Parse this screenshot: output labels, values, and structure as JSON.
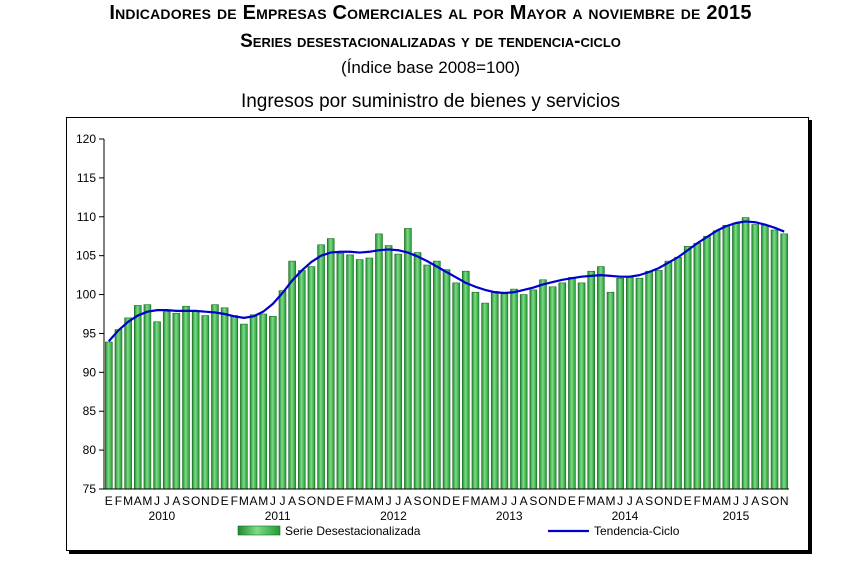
{
  "header": {
    "title_line1": "Indicadores de Empresas Comerciales al por Mayor a noviembre de 2015",
    "title_line2": "Series desestacionalizadas y de tendencia-ciclo",
    "subtitle": "(Índice base 2008=100)",
    "chart_title": "Ingresos por suministro de bienes y servicios"
  },
  "chart_data": {
    "type": "bar",
    "title": "Ingresos por suministro de bienes y servicios",
    "xlabel": "",
    "ylabel": "",
    "ylim": [
      75,
      120
    ],
    "yticks": [
      75,
      80,
      85,
      90,
      95,
      100,
      105,
      110,
      115,
      120
    ],
    "grid": false,
    "legend_position": "bottom",
    "month_labels": [
      "E",
      "F",
      "M",
      "A",
      "M",
      "J",
      "J",
      "A",
      "S",
      "O",
      "N",
      "D",
      "E",
      "F",
      "M",
      "A",
      "M",
      "J",
      "J",
      "A",
      "S",
      "O",
      "N",
      "D",
      "E",
      "F",
      "M",
      "A",
      "M",
      "J",
      "J",
      "A",
      "S",
      "O",
      "N",
      "D",
      "E",
      "F",
      "M",
      "A",
      "M",
      "J",
      "J",
      "A",
      "S",
      "O",
      "N",
      "D",
      "E",
      "F",
      "M",
      "A",
      "M",
      "J",
      "J",
      "A",
      "S",
      "O",
      "N",
      "D",
      "E",
      "F",
      "M",
      "A",
      "M",
      "J",
      "J",
      "A",
      "S",
      "O",
      "N"
    ],
    "year_labels": [
      {
        "year": "2010",
        "start_index": 0
      },
      {
        "year": "2011",
        "start_index": 12
      },
      {
        "year": "2012",
        "start_index": 24
      },
      {
        "year": "2013",
        "start_index": 36
      },
      {
        "year": "2014",
        "start_index": 48
      },
      {
        "year": "2015",
        "start_index": 60
      }
    ],
    "series": [
      {
        "name": "Serie Desestacionalizada",
        "kind": "bar",
        "color": "#3cb44a",
        "values": [
          93.9,
          95.5,
          97.0,
          98.6,
          98.7,
          96.5,
          97.8,
          97.6,
          98.5,
          97.8,
          97.3,
          98.7,
          98.3,
          97.3,
          96.2,
          97.4,
          97.5,
          97.2,
          100.5,
          104.3,
          103.1,
          103.6,
          106.4,
          107.2,
          105.3,
          105.1,
          104.5,
          104.7,
          107.8,
          106.3,
          105.2,
          108.5,
          105.4,
          103.8,
          104.3,
          103.2,
          101.5,
          103.0,
          100.3,
          98.9,
          100.4,
          100.1,
          100.7,
          100.0,
          100.6,
          101.9,
          101.0,
          101.5,
          102.2,
          101.5,
          103.0,
          103.6,
          100.3,
          102.1,
          102.2,
          102.1,
          103.0,
          103.1,
          104.3,
          104.8,
          106.2,
          106.6,
          107.5,
          108.2,
          108.9,
          109.2,
          109.9,
          109.0,
          108.9,
          108.3,
          107.8
        ]
      },
      {
        "name": "Tendencia-Ciclo",
        "kind": "line",
        "color": "#0000cc",
        "values": [
          94.0,
          95.4,
          96.5,
          97.3,
          97.8,
          98.0,
          98.0,
          97.9,
          97.9,
          97.9,
          97.8,
          97.7,
          97.5,
          97.2,
          97.0,
          97.2,
          97.8,
          98.8,
          100.2,
          101.8,
          103.1,
          104.2,
          105.0,
          105.4,
          105.5,
          105.5,
          105.4,
          105.5,
          105.7,
          105.8,
          105.7,
          105.4,
          104.9,
          104.3,
          103.6,
          102.9,
          102.2,
          101.5,
          101.0,
          100.6,
          100.3,
          100.2,
          100.3,
          100.6,
          100.9,
          101.3,
          101.6,
          101.9,
          102.1,
          102.3,
          102.4,
          102.5,
          102.4,
          102.3,
          102.3,
          102.5,
          102.9,
          103.4,
          104.1,
          104.8,
          105.7,
          106.6,
          107.4,
          108.2,
          108.8,
          109.2,
          109.4,
          109.3,
          109.0,
          108.6,
          108.1
        ]
      }
    ]
  },
  "legend": {
    "bar_label": "Serie Desestacionalizada",
    "line_label": "Tendencia-Ciclo"
  }
}
